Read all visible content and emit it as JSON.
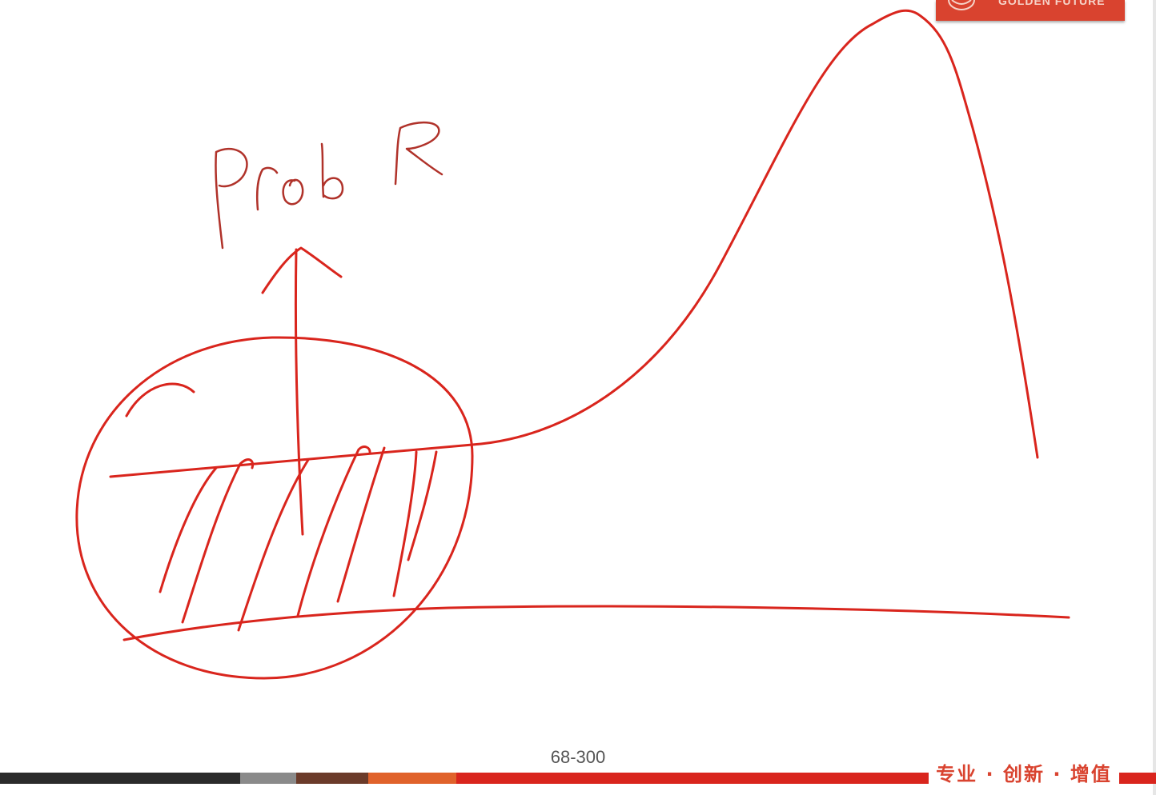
{
  "header": {
    "logo_text": "GOLDEN FUTURE"
  },
  "annotation": {
    "handwritten_label": "Prob R"
  },
  "footer": {
    "page_counter": "68-300",
    "slogan": "专业 · 创新 · 增值"
  },
  "colors": {
    "ink": "#d9251d",
    "brand": "#d9432f",
    "footer_bar_dark": "#2b2b2b",
    "footer_bar_red": "#d9251d",
    "counter_text": "#555555"
  },
  "icons": {
    "logo": "golden-future-logo-icon"
  }
}
